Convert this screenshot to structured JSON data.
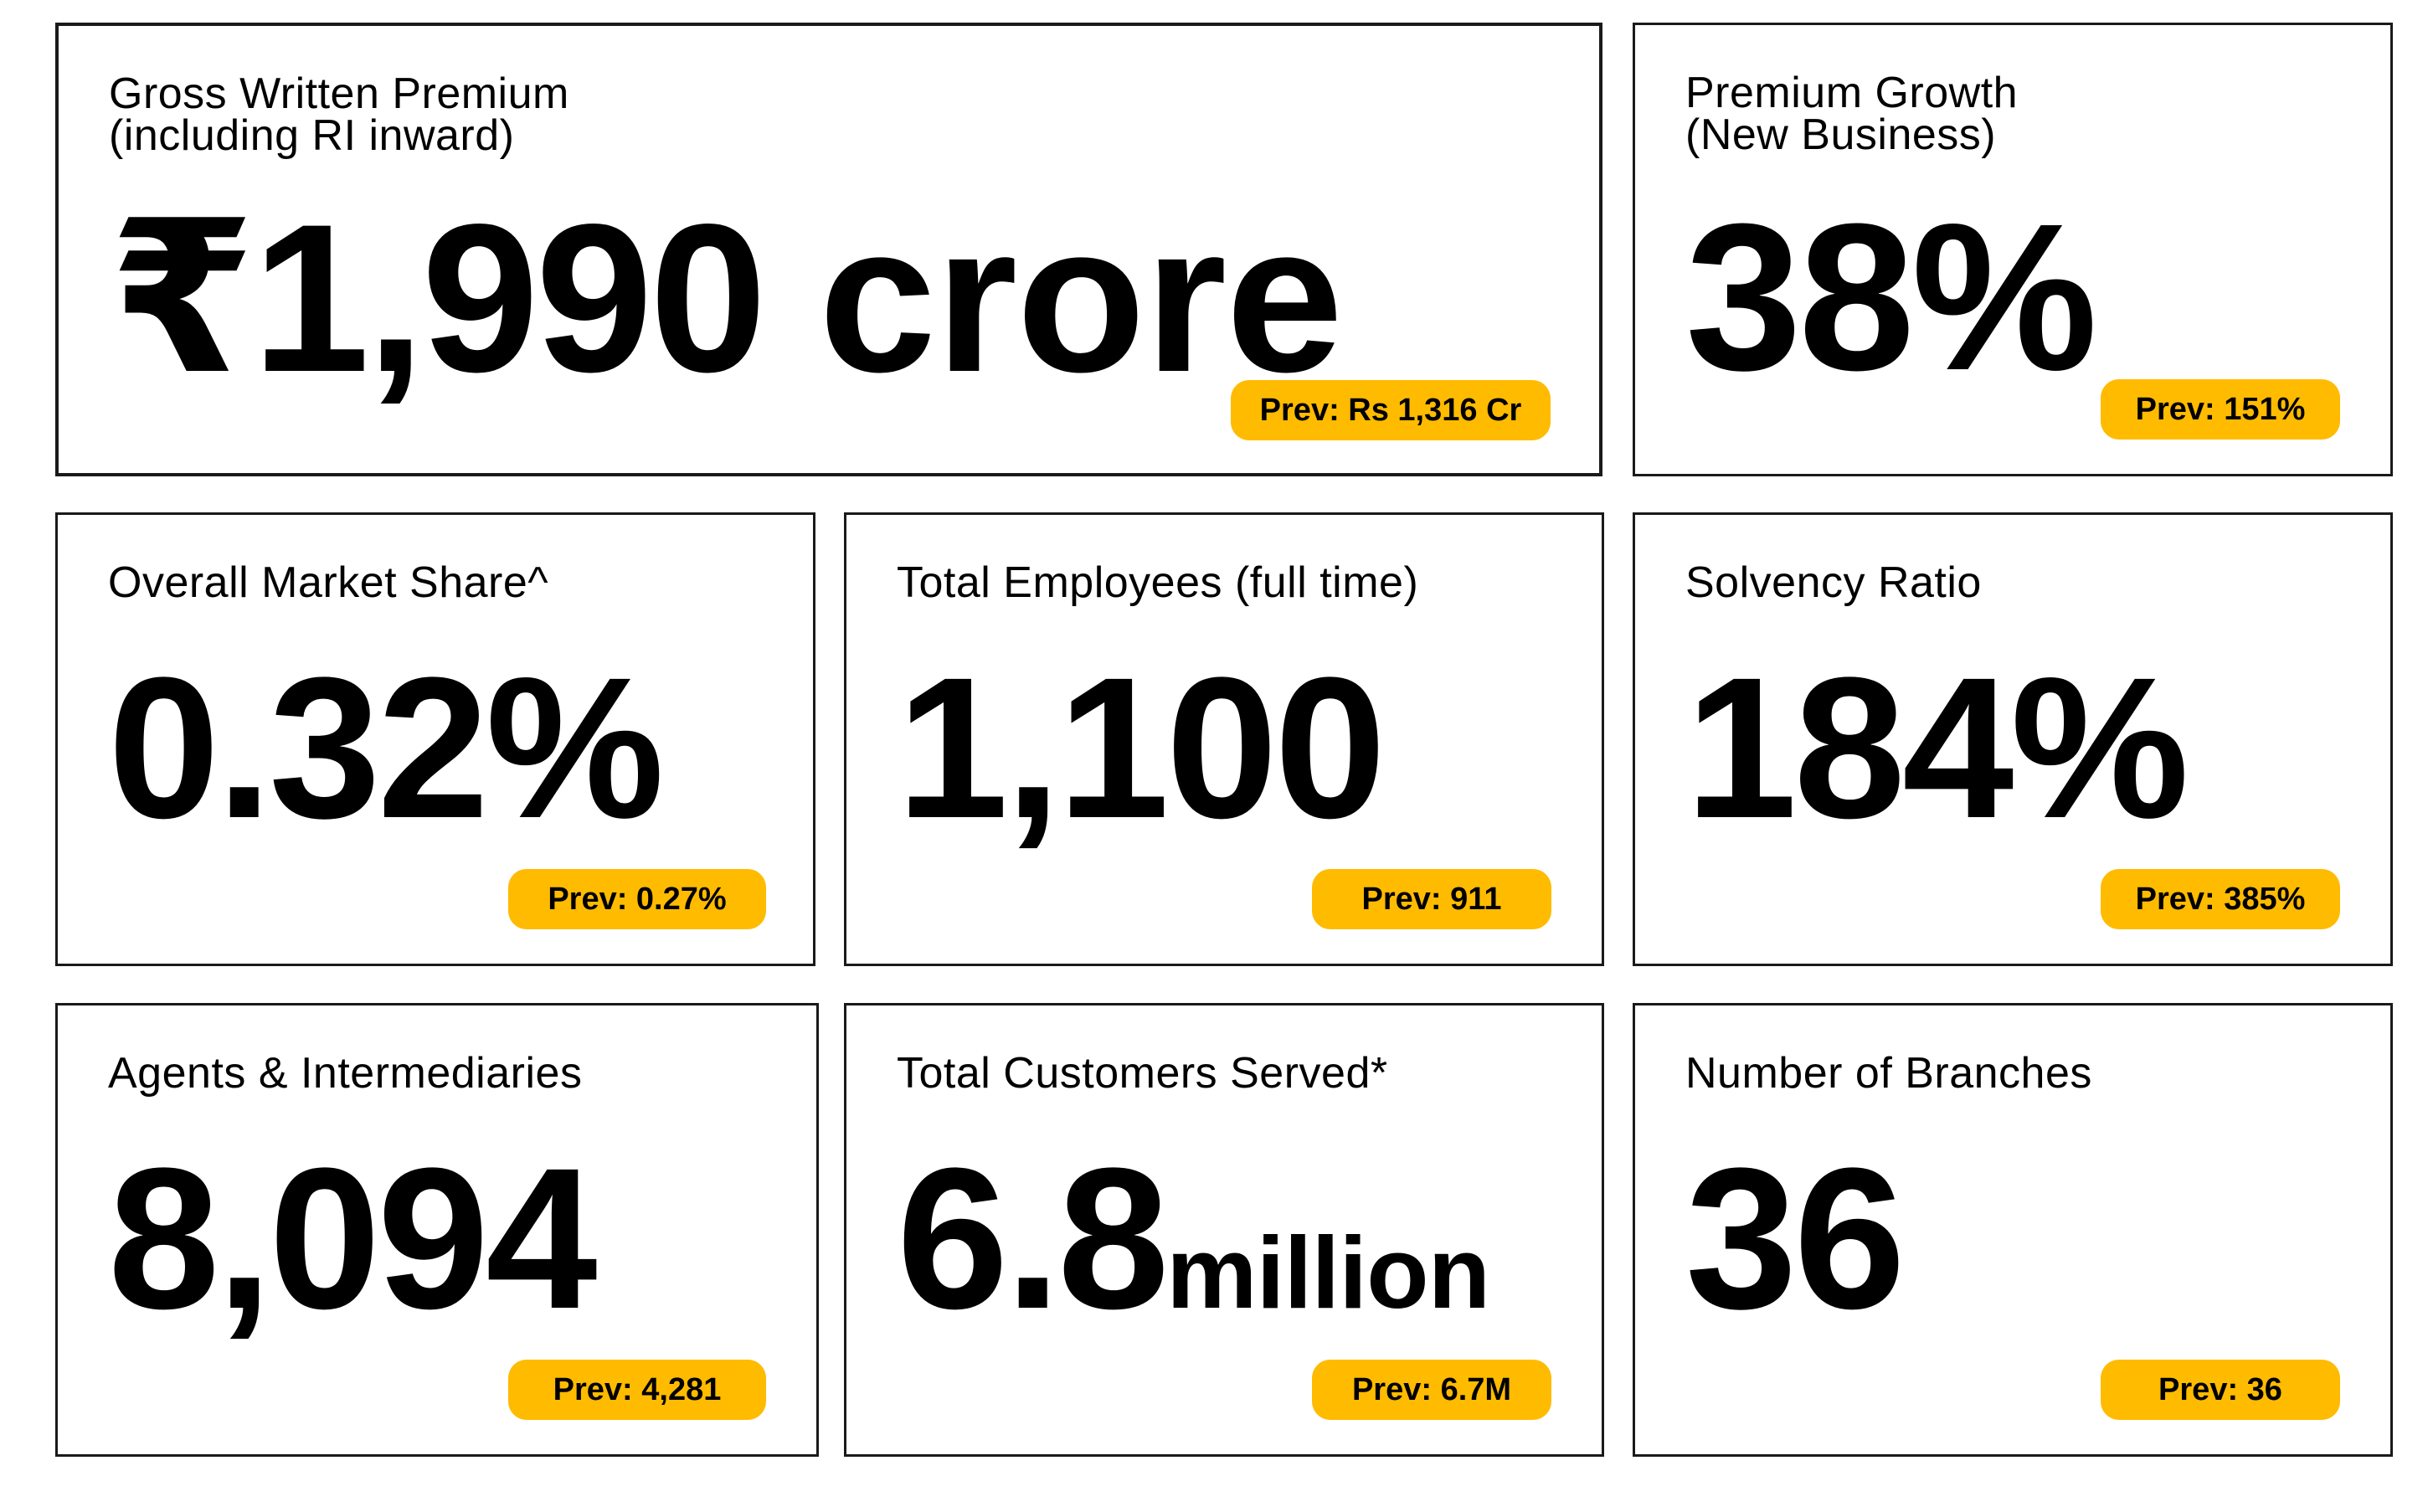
{
  "accent_color": "#FFBB00",
  "cards": {
    "gwp": {
      "label": "Gross Written Premium\n(including RI inward)",
      "value": "₹1,990",
      "unit": "crore",
      "prev": "Prev: Rs 1,316 Cr"
    },
    "growth": {
      "label": "Premium Growth\n(New Business)",
      "value": "38%",
      "prev": "Prev: 151%"
    },
    "market_share": {
      "label": "Overall Market Share^",
      "value": "0.32%",
      "prev": "Prev: 0.27%"
    },
    "employees": {
      "label": "Total Employees (full time)",
      "value": "1,100",
      "prev": "Prev: 911"
    },
    "solvency": {
      "label": "Solvency Ratio",
      "value": "184%",
      "prev": "Prev: 385%"
    },
    "agents": {
      "label": "Agents & Intermediaries",
      "value": "8,094",
      "prev": "Prev: 4,281"
    },
    "customers": {
      "label": "Total Customers Served*",
      "value": "6.8",
      "unit": "million",
      "prev": "Prev: 6.7M"
    },
    "branches": {
      "label": "Number of Branches",
      "value": "36",
      "prev": "Prev: 36"
    }
  }
}
